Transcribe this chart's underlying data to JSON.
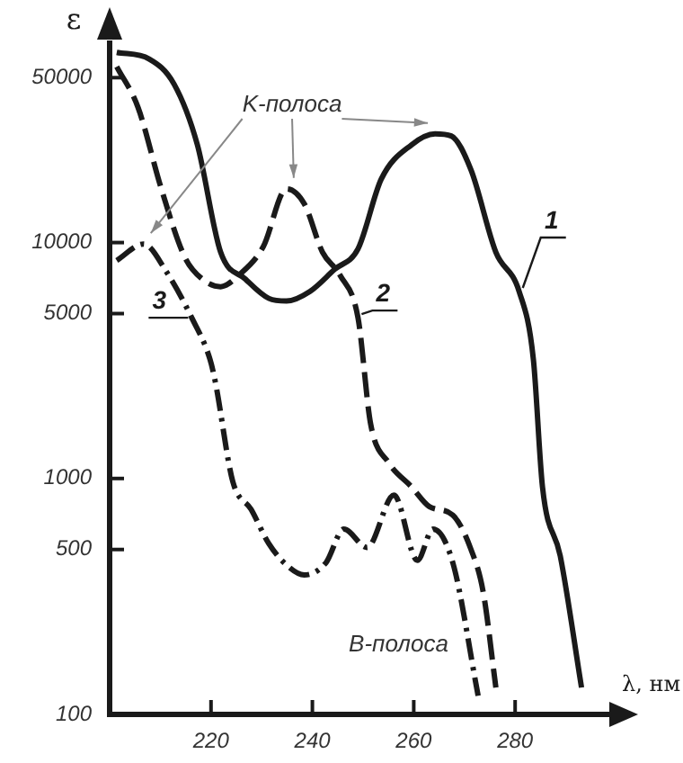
{
  "chart_data": {
    "type": "line",
    "xlabel": "λ, нм",
    "ylabel": "ε",
    "xlim": [
      200,
      300
    ],
    "xticks": [
      220,
      240,
      260,
      280
    ],
    "ylim": [
      100,
      70000
    ],
    "yticks": [
      100,
      500,
      1000,
      5000,
      10000,
      50000
    ],
    "log": "y",
    "grid": false,
    "legend": false,
    "marker": "none",
    "annotations": [
      "K-полоса",
      "B-полоса"
    ],
    "series": [
      {
        "name": "1",
        "color": "#1a1a1a",
        "line_style": "solid",
        "x": [
          201.4,
          207.8,
          212.7,
          217.3,
          221.9,
          226.8,
          231.4,
          234.9,
          239.5,
          244.4,
          249,
          253.6,
          259.6,
          264.2,
          267.4,
          271.3,
          276.2,
          280.8,
          283.6,
          285.4,
          288.9,
          293.1
        ],
        "values": [
          64000,
          60000,
          47000,
          26000,
          9100,
          7000,
          5800,
          5650,
          6200,
          7700,
          9400,
          18600,
          26000,
          28900,
          28300,
          20300,
          9100,
          6200,
          3200,
          920,
          470,
          130
        ]
      },
      {
        "name": "2",
        "color": "#1a1a1a",
        "line_style": "dashed",
        "x": [
          201.4,
          205.6,
          210.2,
          214.8,
          218.3,
          221.9,
          225.4,
          230.3,
          234.9,
          238.4,
          242,
          245.5,
          249,
          251.5,
          255,
          259.6,
          263.1,
          267.7,
          271.3,
          273.7,
          276.2
        ],
        "values": [
          55700,
          37400,
          16900,
          8700,
          7000,
          6500,
          7250,
          9600,
          16900,
          14600,
          9100,
          7250,
          4800,
          1700,
          1170,
          920,
          760,
          700,
          500,
          330,
          130
        ]
      },
      {
        "name": "3",
        "color": "#1a1a1a",
        "line_style": "dashdot",
        "x": [
          201.4,
          206.7,
          211.3,
          216.2,
          219.8,
          220.8,
          224.3,
          227.9,
          231.4,
          234.9,
          238.4,
          242.7,
          246.2,
          250.8,
          256.1,
          260.7,
          263.8,
          267.7,
          272.7
        ],
        "values": [
          8400,
          9860,
          7460,
          4800,
          3200,
          2600,
          970,
          740,
          530,
          430,
          390,
          440,
          610,
          510,
          850,
          450,
          610,
          440,
          120
        ]
      }
    ]
  }
}
